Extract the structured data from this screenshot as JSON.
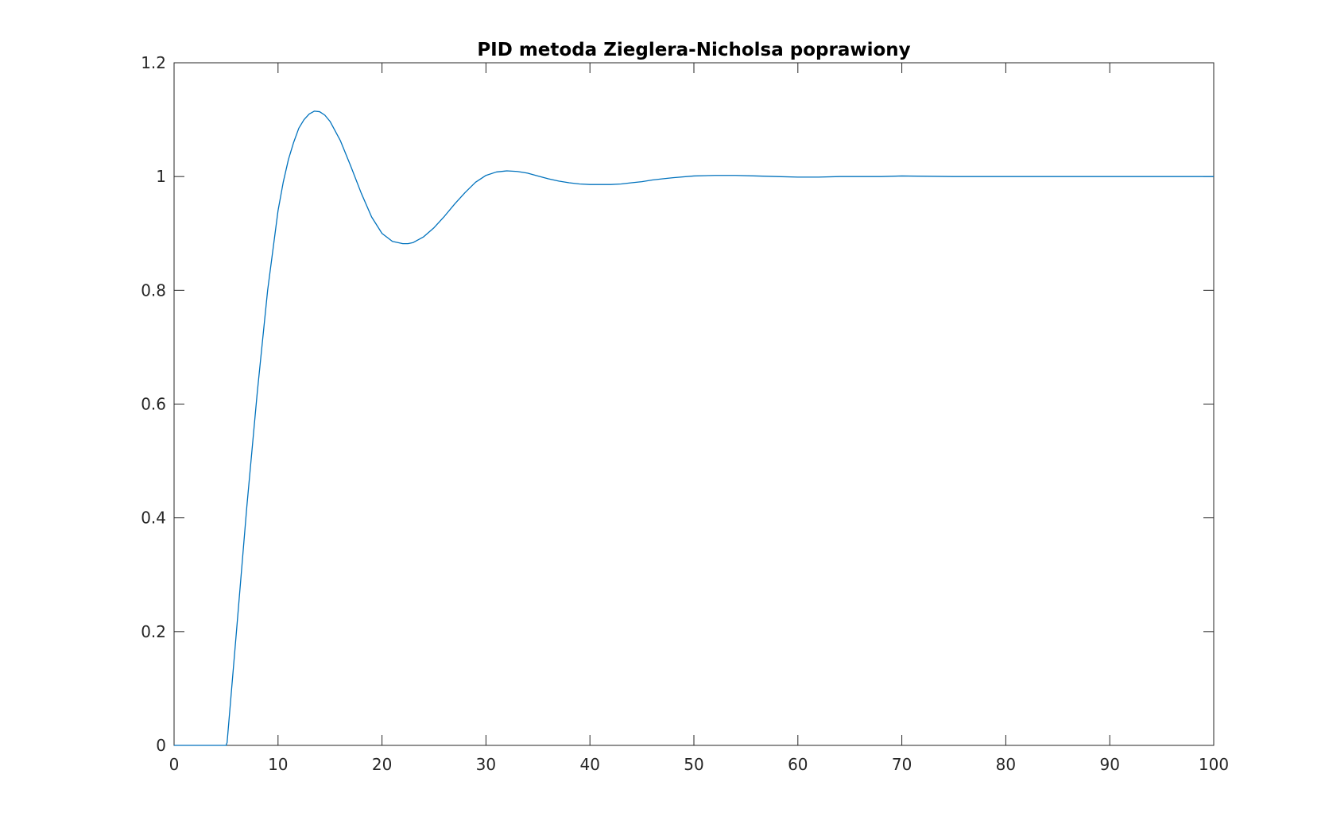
{
  "chart_data": {
    "type": "line",
    "title": "PID metoda Zieglera-Nicholsa poprawiony",
    "xlabel": "",
    "ylabel": "",
    "xlim": [
      0,
      100
    ],
    "ylim": [
      0,
      1.2
    ],
    "xticks": [
      0,
      10,
      20,
      30,
      40,
      50,
      60,
      70,
      80,
      90,
      100
    ],
    "xtick_labels": [
      "0",
      "10",
      "20",
      "30",
      "40",
      "50",
      "60",
      "70",
      "80",
      "90",
      "100"
    ],
    "yticks": [
      0,
      0.2,
      0.4,
      0.6,
      0.8,
      1.0,
      1.2
    ],
    "ytick_labels": [
      "0",
      "0.2",
      "0.4",
      "0.6",
      "0.8",
      "1",
      "1.2"
    ],
    "grid": false,
    "legend": "none",
    "colors": {
      "line": "#0072BD",
      "axes": "#262626",
      "background": "#ffffff"
    },
    "series": [
      {
        "x": [
          0,
          5,
          5.1,
          6,
          7,
          8,
          9,
          10,
          10.5,
          11,
          11.5,
          12,
          12.5,
          13,
          13.5,
          14,
          14.5,
          15,
          16,
          17,
          18,
          19,
          20,
          21,
          22,
          22.5,
          23,
          24,
          25,
          26,
          27,
          28,
          29,
          30,
          31,
          32,
          33,
          34,
          35,
          36,
          37,
          38,
          39,
          40,
          41,
          42,
          43,
          44,
          45,
          46,
          47,
          48,
          50,
          52,
          54,
          56,
          58,
          60,
          62,
          64,
          66,
          68,
          70,
          75,
          80,
          85,
          90,
          95,
          100
        ],
        "y": [
          0,
          0,
          0.005,
          0.2,
          0.42,
          0.62,
          0.8,
          0.94,
          0.99,
          1.03,
          1.06,
          1.085,
          1.1,
          1.11,
          1.115,
          1.114,
          1.108,
          1.097,
          1.063,
          1.018,
          0.971,
          0.929,
          0.9,
          0.886,
          0.882,
          0.882,
          0.884,
          0.894,
          0.91,
          0.93,
          0.952,
          0.972,
          0.99,
          1.002,
          1.008,
          1.01,
          1.009,
          1.006,
          1.001,
          0.996,
          0.992,
          0.989,
          0.987,
          0.986,
          0.986,
          0.986,
          0.987,
          0.989,
          0.991,
          0.994,
          0.996,
          0.998,
          1.001,
          1.002,
          1.002,
          1.001,
          1.0,
          0.999,
          0.999,
          1.0,
          1.0,
          1.0,
          1.001,
          1.0,
          1.0,
          1.0,
          1.0,
          1.0,
          1.0
        ]
      }
    ]
  }
}
